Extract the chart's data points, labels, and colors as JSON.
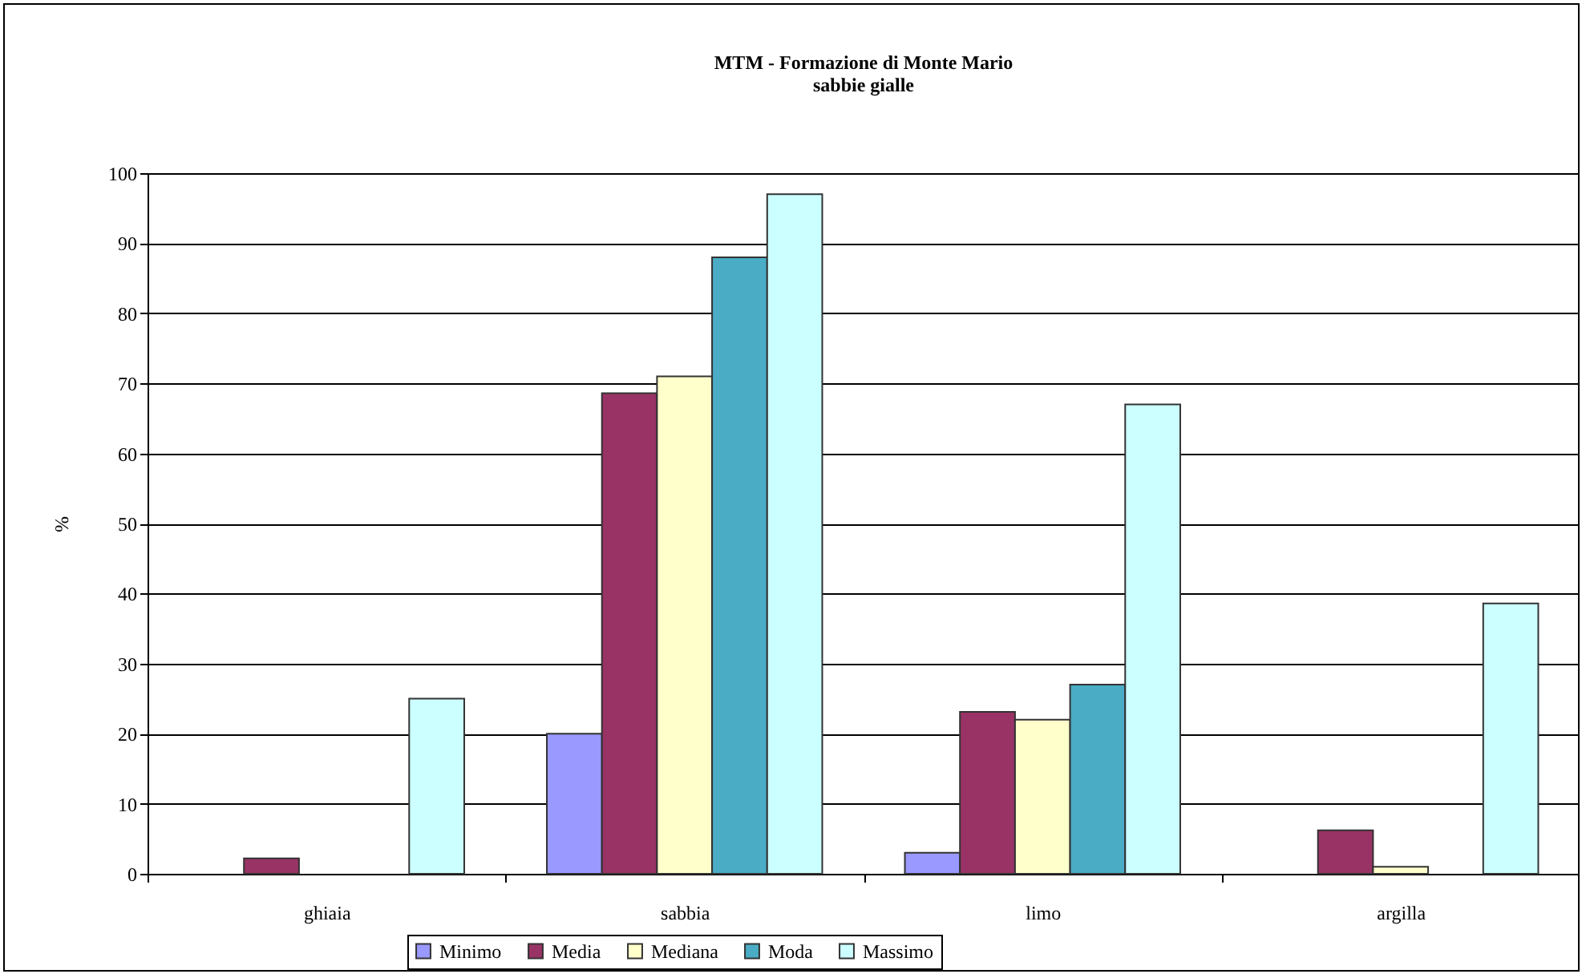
{
  "chart_data": {
    "type": "bar",
    "title": "MTM - Formazione di Monte Mario",
    "subtitle": "sabbie gialle",
    "ylabel": "%",
    "categories": [
      "ghiaia",
      "sabbia",
      "limo",
      "argilla"
    ],
    "series": [
      {
        "name": "Minimo",
        "color": "#9999ff",
        "values": [
          0,
          20,
          3,
          0
        ]
      },
      {
        "name": "Media",
        "color": "#993366",
        "values": [
          2.2,
          68.6,
          23.1,
          6.2
        ]
      },
      {
        "name": "Mediana",
        "color": "#ffffcc",
        "values": [
          0,
          71,
          22,
          1
        ]
      },
      {
        "name": "Moda",
        "color": "#4bacc6",
        "values": [
          0,
          88,
          27,
          0
        ]
      },
      {
        "name": "Massimo",
        "color": "#ccffff",
        "values": [
          25,
          97,
          67,
          38.6
        ]
      }
    ],
    "ylim": [
      0,
      100
    ],
    "yticks": [
      0,
      10,
      20,
      30,
      40,
      50,
      60,
      70,
      80,
      90,
      100
    ],
    "grid": "y",
    "legend": "bottom"
  }
}
